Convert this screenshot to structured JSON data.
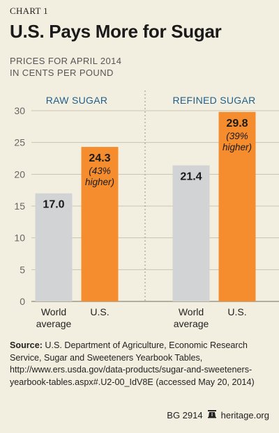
{
  "header": {
    "chart_label": "CHART 1",
    "title": "U.S. Pays More for Sugar",
    "subtitle_line1": "PRICES FOR APRIL 2014",
    "subtitle_line2": "IN CENTS PER POUND"
  },
  "chart_data": {
    "type": "bar",
    "title": "U.S. Pays More for Sugar",
    "ylabel": "",
    "ylim": [
      0,
      30
    ],
    "yticks": [
      0,
      5,
      10,
      15,
      20,
      25,
      30
    ],
    "groups": [
      {
        "name": "RAW SUGAR",
        "bars": [
          {
            "category": "World average",
            "label_lines": [
              "World",
              "average"
            ],
            "value": 17.0,
            "value_label": "17.0",
            "note": "",
            "color": "#d1d3d4"
          },
          {
            "category": "U.S.",
            "label_lines": [
              "U.S."
            ],
            "value": 24.3,
            "value_label": "24.3",
            "note_lines": [
              "(43%",
              "higher)"
            ],
            "color": "#f58d2e"
          }
        ]
      },
      {
        "name": "REFINED SUGAR",
        "bars": [
          {
            "category": "World average",
            "label_lines": [
              "World",
              "average"
            ],
            "value": 21.4,
            "value_label": "21.4",
            "note": "",
            "color": "#d1d3d4"
          },
          {
            "category": "U.S.",
            "label_lines": [
              "U.S."
            ],
            "value": 29.8,
            "value_label": "29.8",
            "note_lines": [
              "(39%",
              "higher)"
            ],
            "color": "#f58d2e"
          }
        ]
      }
    ],
    "grid": true,
    "colors": {
      "world": "#d1d3d4",
      "us": "#f58d2e",
      "group_label": "#1f5f8b",
      "grid": "#c9c3b0"
    }
  },
  "source": {
    "label": "Source:",
    "text": " U.S. Department of Agriculture, Economic Research Service, Sugar and Sweeteners Yearbook Tables, http://www.ers.usda.gov/data-products/sugar-and-sweeteners-yearbook-tables.aspx#.U2-00_IdV8E (accessed May 20, 2014)"
  },
  "footer": {
    "code": "BG 2914",
    "site": "heritage.org",
    "logo_icon": "liberty-bell-icon"
  }
}
